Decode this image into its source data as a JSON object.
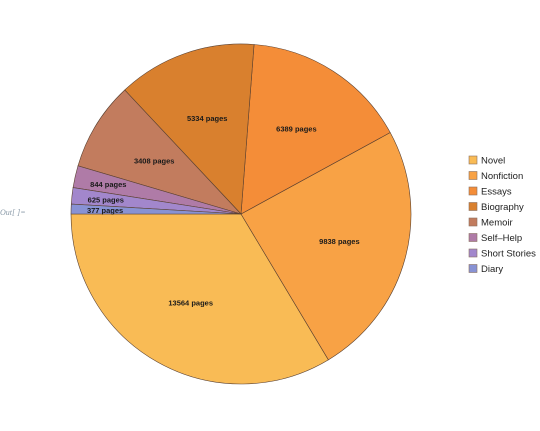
{
  "cell_label": "Out[ ]=",
  "chart_data": {
    "type": "pie",
    "categories": [
      "Novel",
      "Nonfiction",
      "Essays",
      "Biography",
      "Memoir",
      "Self-Help",
      "Short Stories",
      "Diary"
    ],
    "values": [
      13564,
      9838,
      6389,
      5334,
      3408,
      844,
      625,
      377
    ],
    "labels": [
      "13564 pages",
      "9838 pages",
      "6389 pages",
      "5334 pages",
      "3408 pages",
      "844 pages",
      "625 pages",
      "377 pages"
    ],
    "legend_labels": [
      "Novel",
      "Nonfiction",
      "Essays",
      "Biography",
      "Memoir",
      "Self–Help",
      "Short Stories",
      "Diary"
    ],
    "colors": [
      "#F9BB55",
      "#F8A245",
      "#F48D38",
      "#D9802E",
      "#C27C5E",
      "#AF7BA7",
      "#A287CC",
      "#8892D4"
    ],
    "legend_placement": "right"
  }
}
